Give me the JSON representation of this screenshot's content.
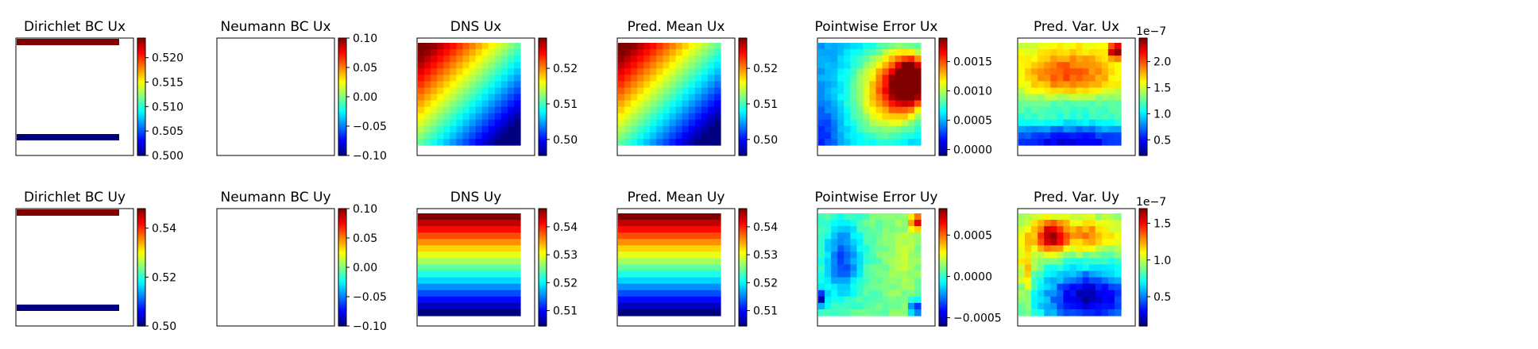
{
  "chart_data": [
    {
      "type": "heatmap",
      "title": "Dirichlet BC Ux",
      "colorbar": {
        "range": [
          0.5,
          0.524
        ],
        "ticks": [
          "0.500",
          "0.505",
          "0.510",
          "0.515",
          "0.520"
        ],
        "tick_values": [
          0.5,
          0.505,
          0.51,
          0.515,
          0.52
        ],
        "offset": ""
      },
      "content": {
        "kind": "bc",
        "top_value": 0.524,
        "bottom_value": 0.5
      }
    },
    {
      "type": "heatmap",
      "title": "Neumann BC Ux",
      "colorbar": {
        "range": [
          -0.1,
          0.1
        ],
        "ticks": [
          "0.10",
          "0.05",
          "0.00",
          "−0.05",
          "−0.10"
        ],
        "tick_values": [
          0.1,
          0.05,
          0.0,
          -0.05,
          -0.1
        ],
        "offset": ""
      },
      "content": {
        "kind": "empty"
      }
    },
    {
      "type": "heatmap",
      "title": "DNS Ux",
      "colorbar": {
        "range": [
          0.4955,
          0.5285
        ],
        "ticks": [
          "0.52",
          "0.51",
          "0.50"
        ],
        "tick_values": [
          0.52,
          0.51,
          0.5
        ],
        "offset": ""
      },
      "content": {
        "kind": "diagonal",
        "min": 0.4955,
        "max": 0.5285
      }
    },
    {
      "type": "heatmap",
      "title": "Pred. Mean Ux",
      "colorbar": {
        "range": [
          0.4955,
          0.5285
        ],
        "ticks": [
          "0.52",
          "0.51",
          "0.50"
        ],
        "tick_values": [
          0.52,
          0.51,
          0.5
        ],
        "offset": ""
      },
      "content": {
        "kind": "diagonal",
        "min": 0.4955,
        "max": 0.5285
      }
    },
    {
      "type": "heatmap",
      "title": "Pointwise Error Ux",
      "colorbar": {
        "range": [
          -0.0001,
          0.0019
        ],
        "ticks": [
          "0.0015",
          "0.0010",
          "0.0005",
          "0.0000"
        ],
        "tick_values": [
          0.0015,
          0.001,
          0.0005,
          0.0
        ],
        "offset": ""
      },
      "content": {
        "kind": "blob_right",
        "min": -0.0001,
        "max": 0.0019
      }
    },
    {
      "type": "heatmap",
      "title": "Pred. Var. Ux",
      "colorbar": {
        "range": [
          0.2,
          2.45
        ],
        "ticks": [
          "2.0",
          "1.5",
          "1.0",
          "0.5"
        ],
        "tick_values": [
          2.0,
          1.5,
          1.0,
          0.5
        ],
        "offset": "1e−7"
      },
      "content": {
        "kind": "var_ux",
        "min": 0.2,
        "max": 2.45
      }
    },
    {
      "type": "heatmap",
      "title": "Dirichlet BC Uy",
      "colorbar": {
        "range": [
          0.5,
          0.548
        ],
        "ticks": [
          "0.54",
          "0.52",
          "0.50"
        ],
        "tick_values": [
          0.54,
          0.52,
          0.5
        ],
        "offset": ""
      },
      "content": {
        "kind": "bc",
        "top_value": 0.548,
        "bottom_value": 0.5
      }
    },
    {
      "type": "heatmap",
      "title": "Neumann BC Uy",
      "colorbar": {
        "range": [
          -0.1,
          0.1
        ],
        "ticks": [
          "0.10",
          "0.05",
          "0.00",
          "−0.05",
          "−0.10"
        ],
        "tick_values": [
          0.1,
          0.05,
          0.0,
          -0.05,
          -0.1
        ],
        "offset": ""
      },
      "content": {
        "kind": "empty"
      }
    },
    {
      "type": "heatmap",
      "title": "DNS Uy",
      "colorbar": {
        "range": [
          0.5045,
          0.5465
        ],
        "ticks": [
          "0.54",
          "0.53",
          "0.52",
          "0.51"
        ],
        "tick_values": [
          0.54,
          0.53,
          0.52,
          0.51
        ],
        "offset": ""
      },
      "content": {
        "kind": "rows",
        "min": 0.5045,
        "max": 0.5465
      }
    },
    {
      "type": "heatmap",
      "title": "Pred. Mean Uy",
      "colorbar": {
        "range": [
          0.5045,
          0.5465
        ],
        "ticks": [
          "0.54",
          "0.53",
          "0.52",
          "0.51"
        ],
        "tick_values": [
          0.54,
          0.53,
          0.52,
          0.51
        ],
        "offset": ""
      },
      "content": {
        "kind": "rows",
        "min": 0.5045,
        "max": 0.5465
      }
    },
    {
      "type": "heatmap",
      "title": "Pointwise Error Uy",
      "colorbar": {
        "range": [
          -0.0006,
          0.00082
        ],
        "ticks": [
          "0.0005",
          "0.0000",
          "−0.0005"
        ],
        "tick_values": [
          0.0005,
          0.0,
          -0.0005
        ],
        "offset": ""
      },
      "content": {
        "kind": "blob_left",
        "min": -0.0006,
        "max": 0.00082
      }
    },
    {
      "type": "heatmap",
      "title": "Pred. Var. Uy",
      "colorbar": {
        "range": [
          0.1,
          1.7
        ],
        "ticks": [
          "1.5",
          "1.0",
          "0.5"
        ],
        "tick_values": [
          1.5,
          1.0,
          0.5
        ],
        "offset": "1e−7"
      },
      "content": {
        "kind": "var_uy",
        "min": 0.1,
        "max": 1.7
      }
    }
  ]
}
